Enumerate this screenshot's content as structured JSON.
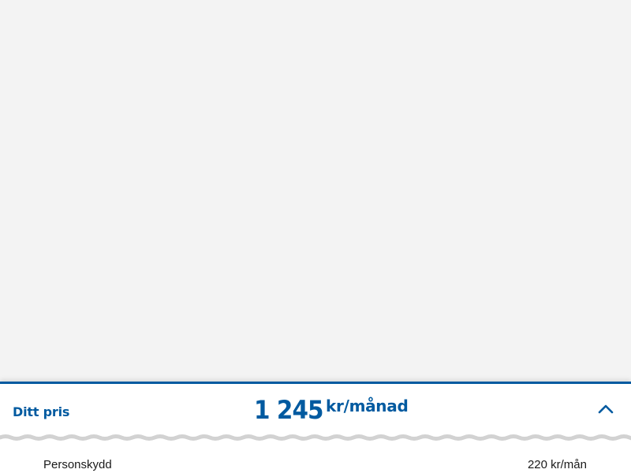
{
  "price_panel": {
    "title": "Ditt pris",
    "amount": "1 245",
    "unit": "kr/månad",
    "toggle_icon": "chevron-up-icon",
    "accent_color": "#005aa0",
    "breakdown": [
      {
        "label": "Personskydd",
        "value": "220 kr/mån"
      }
    ]
  }
}
